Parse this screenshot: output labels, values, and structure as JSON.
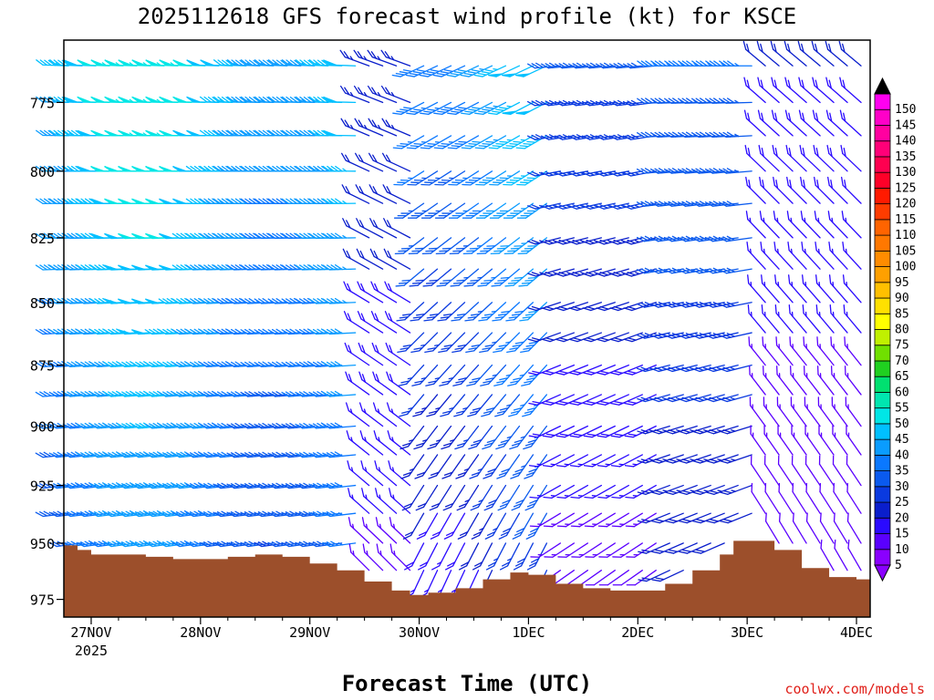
{
  "chart_data": {
    "type": "wind-barb-time-height",
    "title": "2025112618 GFS forecast wind profile (kt) for KSCE",
    "xlabel": "Forecast Time (UTC)",
    "credit": "coolwx.com/models",
    "ylim": [
      983,
      753
    ],
    "y_ticks": [
      775,
      800,
      825,
      850,
      875,
      900,
      925,
      950,
      975
    ],
    "x_ticks": [
      {
        "label": "27NOV",
        "sublabel": "2025",
        "hour": 0
      },
      {
        "label": "28NOV",
        "sublabel": "",
        "hour": 24
      },
      {
        "label": "29NOV",
        "sublabel": "",
        "hour": 48
      },
      {
        "label": "30NOV",
        "sublabel": "",
        "hour": 72
      },
      {
        "label": "1DEC",
        "sublabel": "",
        "hour": 96
      },
      {
        "label": "2DEC",
        "sublabel": "",
        "hour": 120
      },
      {
        "label": "3DEC",
        "sublabel": "",
        "hour": 144
      },
      {
        "label": "4DEC",
        "sublabel": "",
        "hour": 168
      }
    ],
    "x_range_hours": [
      -6,
      171
    ],
    "levels": [
      762,
      775,
      787,
      800,
      812,
      825,
      837,
      850,
      862,
      875,
      887,
      900,
      912,
      925,
      937,
      950,
      962
    ],
    "barb_time_step_hours": 3,
    "colorbar": {
      "values": [
        5,
        10,
        15,
        20,
        25,
        30,
        35,
        40,
        45,
        50,
        55,
        60,
        65,
        70,
        75,
        80,
        85,
        90,
        95,
        100,
        105,
        110,
        115,
        120,
        125,
        130,
        135,
        140,
        145,
        150
      ],
      "colors": [
        "#8a00ff",
        "#5a00ff",
        "#2a0aff",
        "#0a1ecc",
        "#0a3ae0",
        "#0a5aee",
        "#0a78ff",
        "#0a9cff",
        "#00c0ff",
        "#00e6e6",
        "#00e6b0",
        "#00e070",
        "#20d020",
        "#70e000",
        "#c0f000",
        "#ffff00",
        "#ffe000",
        "#ffc000",
        "#ffa000",
        "#ff8c00",
        "#ff7800",
        "#ff6400",
        "#ff3c00",
        "#ff1a00",
        "#ff0028",
        "#ff0050",
        "#ff0078",
        "#ff00a0",
        "#ff00c8",
        "#ff00f0"
      ]
    },
    "terrain_pressure": [
      {
        "h": -6,
        "p": 951
      },
      {
        "h": -3,
        "p": 953
      },
      {
        "h": 0,
        "p": 955
      },
      {
        "h": 6,
        "p": 955
      },
      {
        "h": 12,
        "p": 956
      },
      {
        "h": 18,
        "p": 957
      },
      {
        "h": 24,
        "p": 957
      },
      {
        "h": 30,
        "p": 956
      },
      {
        "h": 36,
        "p": 955
      },
      {
        "h": 42,
        "p": 956
      },
      {
        "h": 48,
        "p": 959
      },
      {
        "h": 54,
        "p": 962
      },
      {
        "h": 60,
        "p": 967
      },
      {
        "h": 66,
        "p": 971
      },
      {
        "h": 70,
        "p": 973
      },
      {
        "h": 74,
        "p": 972
      },
      {
        "h": 80,
        "p": 970
      },
      {
        "h": 86,
        "p": 966
      },
      {
        "h": 92,
        "p": 963
      },
      {
        "h": 96,
        "p": 964
      },
      {
        "h": 102,
        "p": 968
      },
      {
        "h": 108,
        "p": 970
      },
      {
        "h": 114,
        "p": 971
      },
      {
        "h": 120,
        "p": 971
      },
      {
        "h": 126,
        "p": 968
      },
      {
        "h": 132,
        "p": 962
      },
      {
        "h": 138,
        "p": 955
      },
      {
        "h": 141,
        "p": 949
      },
      {
        "h": 144,
        "p": 949
      },
      {
        "h": 150,
        "p": 953
      },
      {
        "h": 156,
        "p": 961
      },
      {
        "h": 162,
        "p": 965
      },
      {
        "h": 168,
        "p": 966
      },
      {
        "h": 171,
        "p": 966
      }
    ]
  }
}
